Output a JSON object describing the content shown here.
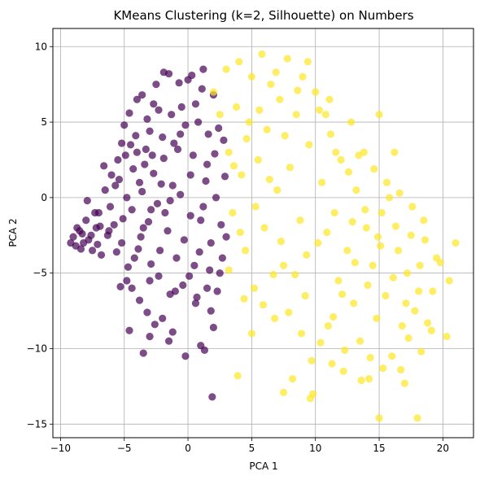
{
  "chart_data": {
    "type": "scatter",
    "title": "KMeans Clustering (k=2, Silhouette) on Numbers",
    "xlabel": "PCA 1",
    "ylabel": "PCA 2",
    "xlim": [
      -10.6,
      22.4
    ],
    "ylim": [
      -15.9,
      11.2
    ],
    "xticks": [
      -10,
      -5,
      0,
      5,
      10,
      15,
      20
    ],
    "xtick_labels": [
      "−10",
      "−5",
      "0",
      "5",
      "10",
      "15",
      "20"
    ],
    "yticks": [
      10,
      5,
      0,
      -5,
      -10,
      -15
    ],
    "ytick_labels": [
      "10",
      "5",
      "0",
      "−5",
      "−10",
      "−15"
    ],
    "grid": true,
    "legend": "none",
    "colors": {
      "cluster_0": "#440154",
      "cluster_1": "#fde725"
    },
    "series": [
      {
        "cluster": 0,
        "color": "#440154",
        "points": [
          [
            -9.0,
            -2.6
          ],
          [
            -8.8,
            -3.2
          ],
          [
            -8.5,
            -2.2
          ],
          [
            -8.2,
            -3.0
          ],
          [
            -8.0,
            -1.5
          ],
          [
            -7.8,
            -2.8
          ],
          [
            -7.5,
            -3.5
          ],
          [
            -7.2,
            -2.0
          ],
          [
            -7.0,
            -1.0
          ],
          [
            -6.8,
            -3.8
          ],
          [
            -6.5,
            0.5
          ],
          [
            -6.3,
            -2.5
          ],
          [
            -6.0,
            1.5
          ],
          [
            -5.8,
            -1.8
          ],
          [
            -5.5,
            2.5
          ],
          [
            -5.2,
            -3.0
          ],
          [
            -5.0,
            4.8
          ],
          [
            -4.8,
            0.0
          ],
          [
            -4.5,
            3.5
          ],
          [
            -4.2,
            -4.0
          ],
          [
            -4.0,
            6.5
          ],
          [
            -3.8,
            1.0
          ],
          [
            -3.5,
            -2.0
          ],
          [
            -3.2,
            5.2
          ],
          [
            -3.0,
            -5.5
          ],
          [
            -2.8,
            2.8
          ],
          [
            -2.5,
            7.5
          ],
          [
            -2.2,
            -3.5
          ],
          [
            -2.0,
            4.0
          ],
          [
            -1.8,
            -1.0
          ],
          [
            -1.5,
            8.2
          ],
          [
            -1.2,
            0.8
          ],
          [
            -1.0,
            -6.2
          ],
          [
            -0.8,
            3.2
          ],
          [
            -0.5,
            6.0
          ],
          [
            -0.3,
            -2.8
          ],
          [
            0.0,
            7.8
          ],
          [
            0.2,
            1.5
          ],
          [
            0.5,
            -4.5
          ],
          [
            0.8,
            5.0
          ],
          [
            1.0,
            -1.5
          ],
          [
            1.2,
            8.5
          ],
          [
            1.5,
            2.2
          ],
          [
            1.8,
            -3.0
          ],
          [
            2.0,
            6.8
          ],
          [
            2.2,
            0.0
          ],
          [
            2.5,
            -5.0
          ],
          [
            2.8,
            3.8
          ],
          [
            1.8,
            -7.5
          ],
          [
            0.6,
            -7.0
          ],
          [
            -4.8,
            -5.5
          ],
          [
            -3.8,
            -6.8
          ],
          [
            -2.0,
            -8.0
          ],
          [
            -1.5,
            -9.5
          ],
          [
            -3.0,
            -9.2
          ],
          [
            -0.2,
            -10.5
          ],
          [
            1.0,
            -9.8
          ],
          [
            2.0,
            -8.6
          ],
          [
            -3.2,
            -7.6
          ],
          [
            -1.2,
            -8.9
          ],
          [
            1.3,
            -10.1
          ],
          [
            1.9,
            -13.2
          ],
          [
            -2.6,
            -8.4
          ],
          [
            -4.6,
            -8.8
          ],
          [
            -3.5,
            -10.3
          ],
          [
            -4.4,
            -6.0
          ],
          [
            -5.3,
            -5.9
          ],
          [
            -7.3,
            -1.0
          ],
          [
            -7.9,
            -0.2
          ],
          [
            -8.4,
            -3.4
          ],
          [
            -6.6,
            2.1
          ],
          [
            -5.7,
            0.8
          ],
          [
            -5.1,
            -1.4
          ],
          [
            -4.3,
            1.9
          ],
          [
            -3.3,
            3.2
          ],
          [
            -2.3,
            5.8
          ],
          [
            -1.3,
            5.5
          ],
          [
            -0.6,
            4.2
          ],
          [
            0.4,
            2.8
          ],
          [
            1.4,
            1.1
          ],
          [
            2.6,
            -1.8
          ],
          [
            2.9,
            1.4
          ],
          [
            3.0,
            -2.6
          ],
          [
            2.4,
            4.6
          ],
          [
            1.1,
            7.2
          ],
          [
            0.3,
            8.1
          ],
          [
            -0.7,
            7.6
          ],
          [
            -1.9,
            8.3
          ],
          [
            -2.7,
            6.2
          ],
          [
            -3.6,
            6.8
          ],
          [
            -4.1,
            4.1
          ],
          [
            -4.9,
            2.8
          ],
          [
            -5.4,
            1.2
          ],
          [
            -6.1,
            -0.6
          ],
          [
            -6.9,
            -1.9
          ],
          [
            -7.6,
            -2.5
          ],
          [
            -8.7,
            -2.0
          ],
          [
            -9.2,
            -3.0
          ],
          [
            -8.3,
            -2.4
          ],
          [
            -7.1,
            -3.1
          ],
          [
            -6.2,
            -2.2
          ],
          [
            -5.6,
            -3.6
          ],
          [
            -4.7,
            -4.6
          ],
          [
            -3.9,
            -3.4
          ],
          [
            -3.1,
            -1.6
          ],
          [
            -2.4,
            -0.4
          ],
          [
            -1.6,
            -2.2
          ],
          [
            -0.9,
            -4.0
          ],
          [
            0.1,
            -5.2
          ],
          [
            0.9,
            -3.6
          ],
          [
            1.7,
            -4.8
          ],
          [
            2.3,
            -6.2
          ],
          [
            2.7,
            -4.0
          ],
          [
            1.5,
            -6.0
          ],
          [
            0.7,
            -6.6
          ],
          [
            -0.4,
            -5.8
          ],
          [
            -1.4,
            -6.4
          ],
          [
            -2.3,
            -5.2
          ],
          [
            -2.9,
            -4.4
          ],
          [
            -3.7,
            -2.6
          ],
          [
            -4.4,
            -0.8
          ],
          [
            -3.6,
            0.4
          ],
          [
            -2.7,
            1.6
          ],
          [
            -1.9,
            2.6
          ],
          [
            -1.1,
            3.6
          ],
          [
            -0.2,
            4.8
          ],
          [
            0.6,
            6.2
          ],
          [
            1.6,
            4.2
          ],
          [
            2.1,
            2.9
          ],
          [
            1.2,
            -0.6
          ],
          [
            0.2,
            -1.2
          ],
          [
            -0.6,
            0.2
          ],
          [
            -1.4,
            -0.2
          ],
          [
            -2.1,
            0.9
          ],
          [
            -2.9,
            -0.8
          ],
          [
            -3.4,
            2.2
          ],
          [
            -4.0,
            3.0
          ],
          [
            -4.6,
            5.6
          ],
          [
            -5.2,
            3.6
          ],
          [
            -3.0,
            4.4
          ]
        ]
      },
      {
        "cluster": 1,
        "color": "#fde725",
        "points": [
          [
            2.0,
            7.0
          ],
          [
            2.5,
            5.5
          ],
          [
            3.0,
            8.5
          ],
          [
            3.2,
            3.0
          ],
          [
            3.5,
            -1.0
          ],
          [
            3.8,
            6.0
          ],
          [
            4.0,
            9.0
          ],
          [
            4.2,
            1.5
          ],
          [
            4.5,
            -3.5
          ],
          [
            4.8,
            5.0
          ],
          [
            5.0,
            8.0
          ],
          [
            5.2,
            -6.0
          ],
          [
            5.5,
            2.5
          ],
          [
            5.8,
            9.5
          ],
          [
            6.0,
            -2.0
          ],
          [
            6.2,
            4.5
          ],
          [
            6.5,
            7.5
          ],
          [
            6.8,
            -8.0
          ],
          [
            7.0,
            0.5
          ],
          [
            7.2,
            6.5
          ],
          [
            7.5,
            -4.5
          ],
          [
            7.8,
            9.2
          ],
          [
            8.0,
            2.0
          ],
          [
            8.2,
            -12.0
          ],
          [
            8.5,
            5.5
          ],
          [
            8.8,
            -1.5
          ],
          [
            9.0,
            8.0
          ],
          [
            9.2,
            -6.5
          ],
          [
            9.5,
            3.5
          ],
          [
            9.8,
            -13.0
          ],
          [
            10.0,
            7.0
          ],
          [
            10.2,
            -3.0
          ],
          [
            10.5,
            1.0
          ],
          [
            10.8,
            5.5
          ],
          [
            11.0,
            -8.5
          ],
          [
            11.2,
            4.2
          ],
          [
            11.5,
            -1.0
          ],
          [
            11.8,
            -5.5
          ],
          [
            12.0,
            2.5
          ],
          [
            12.2,
            -11.5
          ],
          [
            12.5,
            -3.5
          ],
          [
            12.8,
            5.0
          ],
          [
            13.0,
            -7.0
          ],
          [
            13.2,
            0.5
          ],
          [
            13.5,
            -9.5
          ],
          [
            13.8,
            3.0
          ],
          [
            14.0,
            -2.0
          ],
          [
            14.2,
            -12.0
          ],
          [
            14.5,
            -4.5
          ],
          [
            14.8,
            -8.0
          ],
          [
            15.0,
            5.5
          ],
          [
            15.2,
            -1.0
          ],
          [
            15.5,
            -6.5
          ],
          [
            15.8,
            0.0
          ],
          [
            16.0,
            -10.5
          ],
          [
            16.2,
            3.0
          ],
          [
            16.5,
            -3.5
          ],
          [
            16.8,
            -8.5
          ],
          [
            17.0,
            -12.3
          ],
          [
            17.2,
            -5.0
          ],
          [
            17.5,
            -2.5
          ],
          [
            17.8,
            -7.5
          ],
          [
            18.0,
            -14.6
          ],
          [
            18.2,
            -4.5
          ],
          [
            18.5,
            -1.5
          ],
          [
            18.8,
            -8.3
          ],
          [
            19.2,
            -6.2
          ],
          [
            19.5,
            -4.0
          ],
          [
            20.3,
            -9.2
          ],
          [
            20.5,
            -5.5
          ],
          [
            21.0,
            -3.0
          ],
          [
            15.0,
            -14.6
          ],
          [
            9.6,
            -13.3
          ],
          [
            7.5,
            -12.9
          ],
          [
            3.9,
            -11.8
          ],
          [
            5.0,
            -9.0
          ],
          [
            5.9,
            -7.1
          ],
          [
            4.4,
            -6.7
          ],
          [
            6.7,
            -5.1
          ],
          [
            3.2,
            -4.8
          ],
          [
            4.1,
            -2.3
          ],
          [
            5.3,
            -0.6
          ],
          [
            6.4,
            1.2
          ],
          [
            3.6,
            2.1
          ],
          [
            4.6,
            3.9
          ],
          [
            5.6,
            5.8
          ],
          [
            6.9,
            8.3
          ],
          [
            7.6,
            4.1
          ],
          [
            8.6,
            7.1
          ],
          [
            9.4,
            9.0
          ],
          [
            10.3,
            5.8
          ],
          [
            11.1,
            6.5
          ],
          [
            11.6,
            3.0
          ],
          [
            12.6,
            1.7
          ],
          [
            13.4,
            2.8
          ],
          [
            14.6,
            1.9
          ],
          [
            15.6,
            1.0
          ],
          [
            16.6,
            0.3
          ],
          [
            17.6,
            -0.6
          ],
          [
            18.6,
            -2.8
          ],
          [
            19.8,
            -4.3
          ],
          [
            18.1,
            -6.2
          ],
          [
            17.1,
            -7.0
          ],
          [
            16.1,
            -5.3
          ],
          [
            15.1,
            -3.2
          ],
          [
            14.1,
            -5.8
          ],
          [
            13.1,
            -4.3
          ],
          [
            12.1,
            -6.4
          ],
          [
            11.4,
            -7.9
          ],
          [
            10.4,
            -9.6
          ],
          [
            9.7,
            -10.8
          ],
          [
            8.9,
            -9.0
          ],
          [
            7.9,
            -7.6
          ],
          [
            8.4,
            -5.1
          ],
          [
            9.3,
            -3.8
          ],
          [
            10.9,
            -2.3
          ],
          [
            12.9,
            -1.6
          ],
          [
            13.9,
            -0.8
          ],
          [
            14.9,
            -2.6
          ],
          [
            16.3,
            -1.9
          ],
          [
            17.3,
            -9.3
          ],
          [
            15.3,
            -11.3
          ],
          [
            13.6,
            -12.1
          ],
          [
            12.3,
            -10.1
          ],
          [
            11.3,
            -11.0
          ],
          [
            14.3,
            -10.6
          ],
          [
            16.7,
            -11.4
          ],
          [
            18.3,
            -10.2
          ],
          [
            19.1,
            -8.8
          ],
          [
            7.3,
            -2.9
          ]
        ]
      }
    ]
  }
}
